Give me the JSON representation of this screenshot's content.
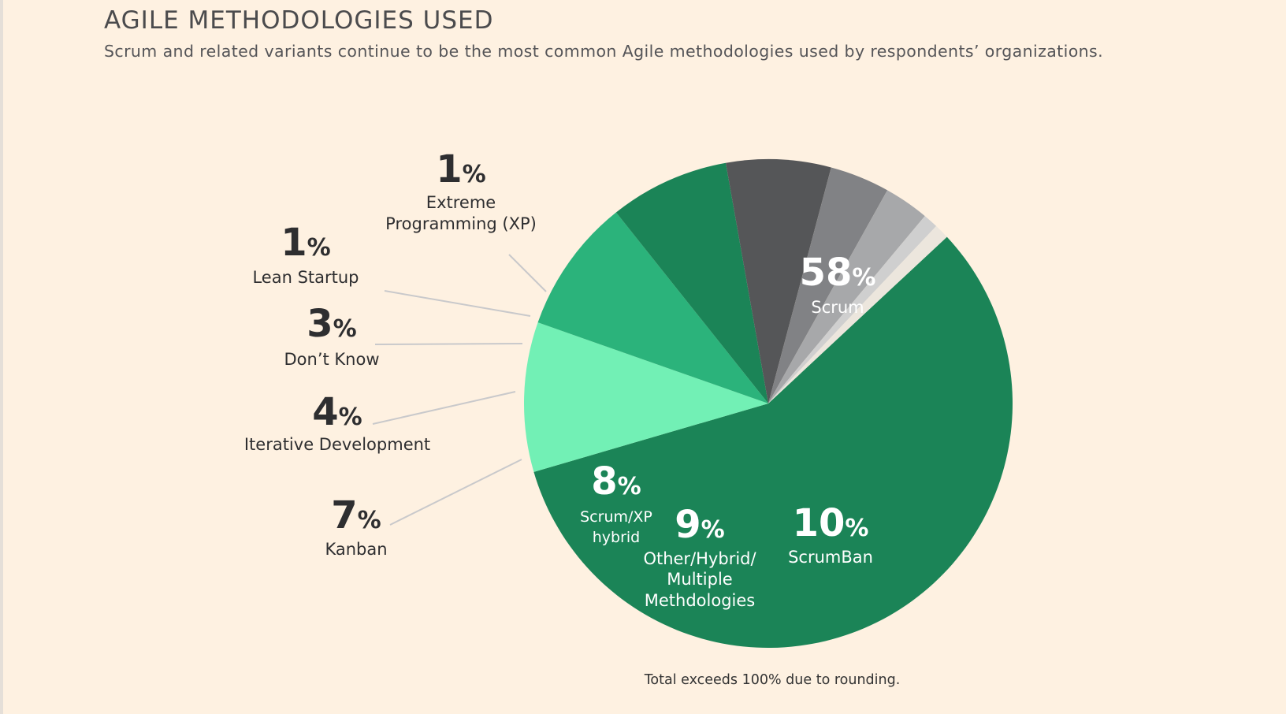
{
  "title": "AGILE METHODOLOGIES USED",
  "subtitle": "Scrum and related variants continue to be the most common Agile methodologies used by respondents’ organizations.",
  "footnote": "Total exceeds 100% due to rounding.",
  "chart_data": {
    "type": "pie",
    "unit": "%",
    "slices": [
      {
        "label": "Scrum",
        "value": 58,
        "color": "#1b8457",
        "label_color": "#ffffff"
      },
      {
        "label": "ScrumBan",
        "value": 10,
        "color": "#72f0b5",
        "label_color": "#ffffff"
      },
      {
        "label": "Other/Hybrid/ Multiple Methdologies",
        "value": 9,
        "color": "#2bb37b",
        "label_color": "#ffffff"
      },
      {
        "label": "Scrum/XP hybrid",
        "value": 8,
        "color": "#1b8457",
        "label_color": "#ffffff"
      },
      {
        "label": "Kanban",
        "value": 7,
        "color": "#555658",
        "label_color": "#2e2e30"
      },
      {
        "label": "Iterative Development",
        "value": 4,
        "color": "#818285",
        "label_color": "#2e2e30"
      },
      {
        "label": "Don’t Know",
        "value": 3,
        "color": "#a7a8aa",
        "label_color": "#2e2e30"
      },
      {
        "label": "Lean Startup",
        "value": 1,
        "color": "#cfcfcf",
        "label_color": "#2e2e30"
      },
      {
        "label": "Extreme Programming (XP)",
        "value": 1,
        "color": "#ece6dd",
        "label_color": "#2e2e30"
      }
    ]
  }
}
